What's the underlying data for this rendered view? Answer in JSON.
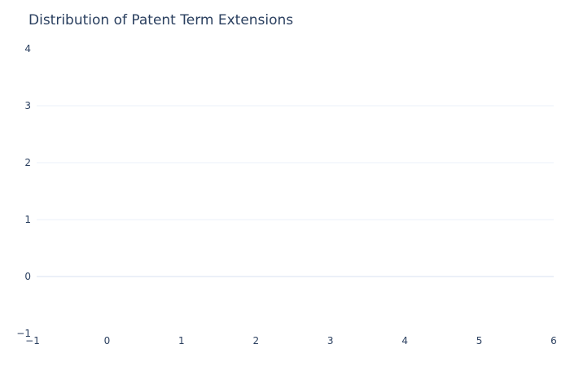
{
  "chart_data": {
    "type": "bar",
    "title": "Distribution of Patent Term Extensions",
    "xlabel": "",
    "ylabel": "",
    "categories": [],
    "values": [],
    "xlim": [
      -1,
      6
    ],
    "ylim": [
      -1,
      4
    ],
    "x_ticks": [
      -1,
      0,
      1,
      2,
      3,
      4,
      5,
      6
    ],
    "y_ticks": [
      -1,
      0,
      1,
      2,
      3,
      4
    ],
    "x_tick_labels": [
      "−1",
      "0",
      "1",
      "2",
      "3",
      "4",
      "5",
      "6"
    ],
    "y_tick_labels": [
      "−1",
      "0",
      "1",
      "2",
      "3",
      "4"
    ],
    "grid": "horizontal",
    "colors": {
      "text": "#2a3f5f",
      "grid": "#ebf0f8",
      "background": "#ffffff"
    }
  }
}
